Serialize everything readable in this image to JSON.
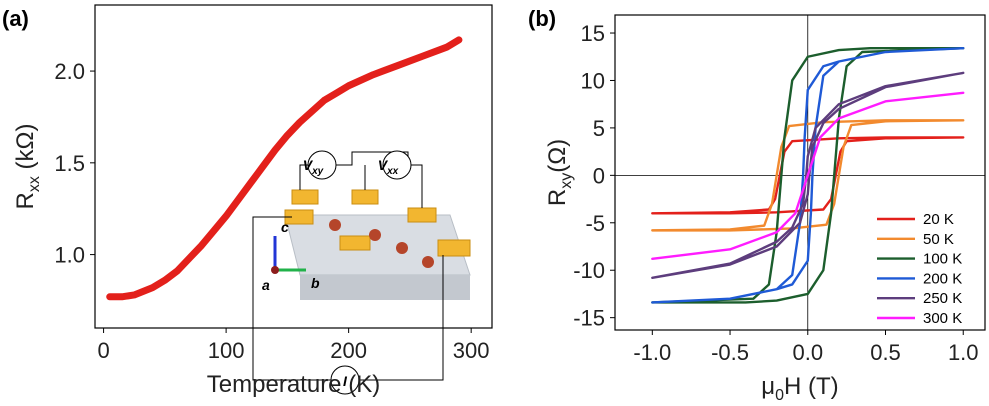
{
  "chart_data": [
    {
      "type": "line",
      "panel_label": "(a)",
      "xlabel": "Temperature (K)",
      "ylabel": [
        "R",
        "xx",
        " (kΩ)"
      ],
      "xlim": [
        -7,
        317
      ],
      "ylim": [
        0.6,
        2.36
      ],
      "xticks": [
        0,
        100,
        200,
        300
      ],
      "yticks": [
        {
          "value": 1,
          "label": "1.0"
        },
        1.5,
        {
          "value": 2,
          "label": "2.0"
        }
      ],
      "grid": false,
      "series": [
        {
          "color": "#e3201b",
          "x": [
            5,
            15,
            25,
            40,
            50,
            60,
            70,
            80,
            90,
            100,
            110,
            120,
            130,
            140,
            150,
            160,
            170,
            180,
            190,
            200,
            220,
            240,
            260,
            280,
            290
          ],
          "values": [
            0.77,
            0.77,
            0.78,
            0.82,
            0.86,
            0.91,
            0.98,
            1.05,
            1.13,
            1.21,
            1.3,
            1.39,
            1.48,
            1.57,
            1.65,
            1.72,
            1.78,
            1.84,
            1.88,
            1.92,
            1.98,
            2.03,
            2.08,
            2.13,
            2.17
          ]
        }
      ]
    },
    {
      "type": "line",
      "panel_label": "(b)",
      "xlabel": [
        "μ",
        "0",
        "H (T)"
      ],
      "ylabel": [
        "R",
        "xy",
        "(Ω)"
      ],
      "xlim": [
        -1.24,
        1.14
      ],
      "ylim": [
        -16.3,
        16.9
      ],
      "xticks": [
        {
          "value": -1,
          "label": "-1.0"
        },
        -0.5,
        {
          "value": 0,
          "label": "0.0"
        },
        0.5,
        {
          "value": 1,
          "label": "1.0"
        }
      ],
      "yticks": [
        15,
        10,
        5,
        0,
        -5,
        -10,
        -15
      ],
      "grid": false,
      "zero_lines": true,
      "legend": "lower right",
      "series": [
        {
          "name": "20 K",
          "color": "#e3201b",
          "x": [
            -1,
            -0.5,
            -0.2,
            0.1,
            0.15,
            0.18,
            0.21,
            0.25,
            0.5,
            1,
            0.5,
            0.2,
            -0.1,
            -0.15,
            -0.18,
            -0.21,
            -0.25,
            -0.5,
            -1
          ],
          "values": [
            -4,
            -4,
            -3.9,
            -3.6,
            -2.5,
            0,
            2.5,
            3.6,
            3.9,
            4,
            4,
            3.9,
            3.6,
            2.5,
            0,
            -2.5,
            -3.6,
            -3.9,
            -4
          ]
        },
        {
          "name": "50 K",
          "color": "#f28a2e",
          "x": [
            -1,
            -0.5,
            -0.1,
            0.12,
            0.17,
            0.2,
            0.23,
            0.28,
            0.5,
            1,
            0.5,
            0.1,
            -0.12,
            -0.17,
            -0.2,
            -0.23,
            -0.28,
            -0.5,
            -1
          ],
          "values": [
            -5.8,
            -5.8,
            -5.6,
            -5.2,
            -3,
            0,
            3,
            5.3,
            5.7,
            5.8,
            5.8,
            5.6,
            5.2,
            3,
            0,
            -3,
            -5.3,
            -5.7,
            -5.8
          ]
        },
        {
          "name": "100 K",
          "color": "#1c5e2d",
          "x": [
            -1,
            -0.4,
            -0.2,
            0,
            0.1,
            0.15,
            0.17,
            0.2,
            0.25,
            0.35,
            1,
            0.4,
            0.2,
            0,
            -0.1,
            -0.15,
            -0.17,
            -0.2,
            -0.25,
            -0.35,
            -1
          ],
          "values": [
            -13.4,
            -13.4,
            -13.2,
            -12.5,
            -10,
            -4,
            0,
            6,
            11.5,
            13,
            13.4,
            13.4,
            13.2,
            12.5,
            10,
            4,
            0,
            -6,
            -11.5,
            -13,
            -13.4
          ]
        },
        {
          "name": "200 K",
          "color": "#1f5ad6",
          "x": [
            -1,
            -0.5,
            -0.2,
            -0.1,
            0,
            0.02,
            0.03,
            0.05,
            0.1,
            0.2,
            0.5,
            1,
            0.5,
            0.2,
            0.1,
            0,
            -0.02,
            -0.03,
            -0.05,
            -0.1,
            -0.2,
            -0.5,
            -1
          ],
          "values": [
            -13.4,
            -13,
            -12,
            -11.5,
            -9,
            -4,
            0,
            5,
            10.5,
            12,
            13,
            13.4,
            13,
            12,
            11.5,
            9,
            4,
            0,
            -5,
            -10.5,
            -12,
            -13,
            -13.4
          ]
        },
        {
          "name": "250 K",
          "color": "#5d3d7d",
          "x": [
            -1,
            -0.5,
            -0.2,
            -0.05,
            0,
            0.01,
            0.03,
            0.1,
            0.2,
            0.5,
            1,
            0.5,
            0.2,
            0.05,
            0,
            -0.01,
            -0.03,
            -0.1,
            -0.2,
            -0.5,
            -1
          ],
          "values": [
            -10.8,
            -9.4,
            -7.5,
            -5,
            -2,
            0,
            3,
            5.5,
            7,
            9.3,
            10.8,
            9.4,
            7.5,
            5,
            2,
            0,
            -3,
            -5.5,
            -7,
            -9.3,
            -10.8
          ]
        },
        {
          "name": "300 K",
          "color": "#ff1cff",
          "x": [
            -1,
            -0.5,
            -0.2,
            -0.08,
            0,
            0.08,
            0.2,
            0.5,
            1
          ],
          "values": [
            -8.8,
            -7.8,
            -6,
            -4,
            0,
            4,
            6,
            7.8,
            8.7
          ]
        }
      ]
    }
  ],
  "inset": {
    "v_xy": [
      "V",
      "xy"
    ],
    "v_xx": [
      "V",
      "xx"
    ],
    "current": "I",
    "axis_a": "a",
    "axis_b": "b",
    "axis_c": "c"
  }
}
